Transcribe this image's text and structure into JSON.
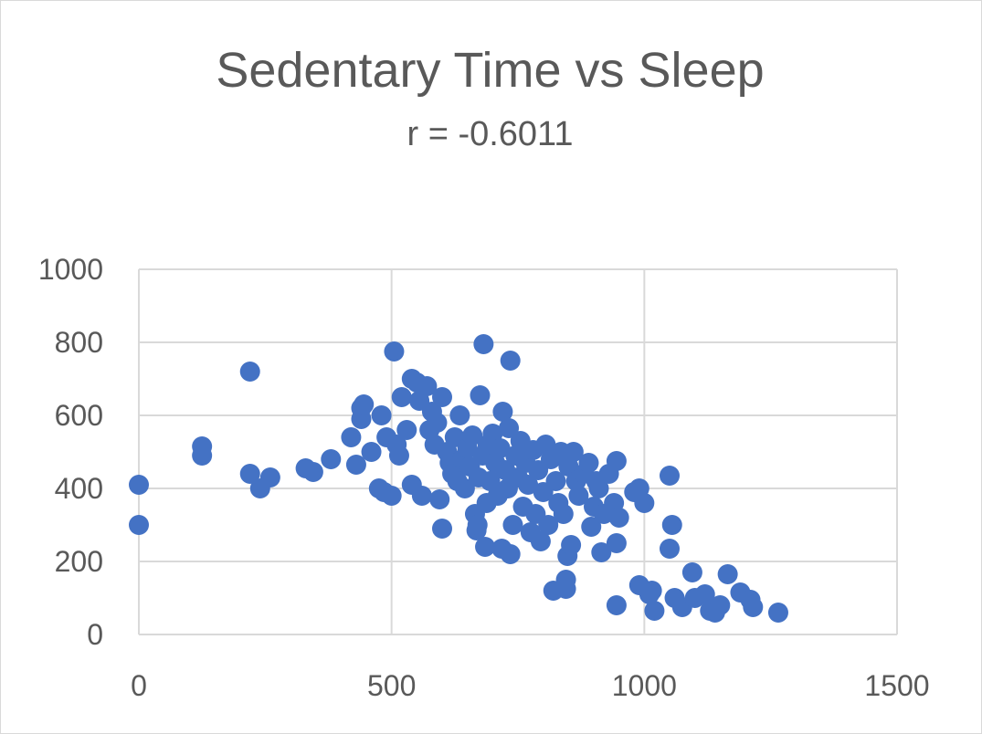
{
  "chart_data": {
    "type": "scatter",
    "title": "Sedentary Time vs Sleep",
    "subtitle": "r = -0.6011",
    "xlabel": "",
    "ylabel": "",
    "xlim": [
      0,
      1500
    ],
    "ylim": [
      0,
      1000
    ],
    "x_ticks": [
      "0",
      "500",
      "1000",
      "1500"
    ],
    "y_ticks": [
      "0",
      "200",
      "400",
      "600",
      "800",
      "1000"
    ],
    "grid": true,
    "legend": "none",
    "series": [
      {
        "color": "#4472c4",
        "points": [
          [
            0,
            410
          ],
          [
            0,
            300
          ],
          [
            125,
            515
          ],
          [
            125,
            490
          ],
          [
            220,
            720
          ],
          [
            220,
            440
          ],
          [
            240,
            400
          ],
          [
            260,
            430
          ],
          [
            330,
            455
          ],
          [
            345,
            445
          ],
          [
            380,
            480
          ],
          [
            420,
            540
          ],
          [
            430,
            465
          ],
          [
            440,
            620
          ],
          [
            440,
            590
          ],
          [
            445,
            630
          ],
          [
            460,
            500
          ],
          [
            475,
            400
          ],
          [
            480,
            600
          ],
          [
            485,
            390
          ],
          [
            490,
            540
          ],
          [
            500,
            380
          ],
          [
            505,
            775
          ],
          [
            510,
            520
          ],
          [
            515,
            490
          ],
          [
            520,
            650
          ],
          [
            530,
            560
          ],
          [
            540,
            700
          ],
          [
            540,
            410
          ],
          [
            550,
            690
          ],
          [
            555,
            640
          ],
          [
            560,
            380
          ],
          [
            570,
            680
          ],
          [
            575,
            560
          ],
          [
            580,
            610
          ],
          [
            585,
            520
          ],
          [
            590,
            580
          ],
          [
            595,
            370
          ],
          [
            600,
            290
          ],
          [
            600,
            650
          ],
          [
            610,
            500
          ],
          [
            615,
            470
          ],
          [
            620,
            440
          ],
          [
            625,
            540
          ],
          [
            630,
            420
          ],
          [
            635,
            600
          ],
          [
            640,
            480
          ],
          [
            645,
            400
          ],
          [
            650,
            510
          ],
          [
            655,
            460
          ],
          [
            660,
            545
          ],
          [
            665,
            330
          ],
          [
            668,
            285
          ],
          [
            670,
            300
          ],
          [
            672,
            430
          ],
          [
            675,
            655
          ],
          [
            680,
            490
          ],
          [
            682,
            795
          ],
          [
            685,
            240
          ],
          [
            688,
            360
          ],
          [
            690,
            520
          ],
          [
            695,
            420
          ],
          [
            700,
            550
          ],
          [
            705,
            470
          ],
          [
            710,
            380
          ],
          [
            715,
            510
          ],
          [
            718,
            235
          ],
          [
            720,
            610
          ],
          [
            725,
            450
          ],
          [
            730,
            400
          ],
          [
            732,
            565
          ],
          [
            735,
            220
          ],
          [
            735,
            750
          ],
          [
            740,
            300
          ],
          [
            745,
            490
          ],
          [
            750,
            430
          ],
          [
            755,
            530
          ],
          [
            760,
            350
          ],
          [
            765,
            470
          ],
          [
            770,
            410
          ],
          [
            775,
            280
          ],
          [
            780,
            505
          ],
          [
            785,
            330
          ],
          [
            790,
            450
          ],
          [
            795,
            255
          ],
          [
            800,
            390
          ],
          [
            805,
            520
          ],
          [
            810,
            300
          ],
          [
            815,
            480
          ],
          [
            820,
            120
          ],
          [
            825,
            420
          ],
          [
            830,
            360
          ],
          [
            835,
            500
          ],
          [
            840,
            330
          ],
          [
            845,
            150
          ],
          [
            845,
            125
          ],
          [
            848,
            215
          ],
          [
            850,
            460
          ],
          [
            855,
            245
          ],
          [
            860,
            500
          ],
          [
            865,
            420
          ],
          [
            870,
            380
          ],
          [
            880,
            440
          ],
          [
            890,
            470
          ],
          [
            895,
            295
          ],
          [
            900,
            350
          ],
          [
            905,
            420
          ],
          [
            910,
            400
          ],
          [
            915,
            225
          ],
          [
            920,
            330
          ],
          [
            930,
            440
          ],
          [
            940,
            360
          ],
          [
            945,
            475
          ],
          [
            945,
            250
          ],
          [
            945,
            80
          ],
          [
            950,
            320
          ],
          [
            980,
            390
          ],
          [
            990,
            135
          ],
          [
            990,
            400
          ],
          [
            1000,
            360
          ],
          [
            1010,
            110
          ],
          [
            1015,
            120
          ],
          [
            1020,
            65
          ],
          [
            1050,
            435
          ],
          [
            1050,
            235
          ],
          [
            1055,
            300
          ],
          [
            1060,
            100
          ],
          [
            1075,
            75
          ],
          [
            1095,
            170
          ],
          [
            1100,
            100
          ],
          [
            1120,
            110
          ],
          [
            1130,
            65
          ],
          [
            1140,
            60
          ],
          [
            1150,
            80
          ],
          [
            1165,
            165
          ],
          [
            1190,
            115
          ],
          [
            1210,
            95
          ],
          [
            1215,
            75
          ],
          [
            1265,
            60
          ]
        ]
      }
    ]
  }
}
